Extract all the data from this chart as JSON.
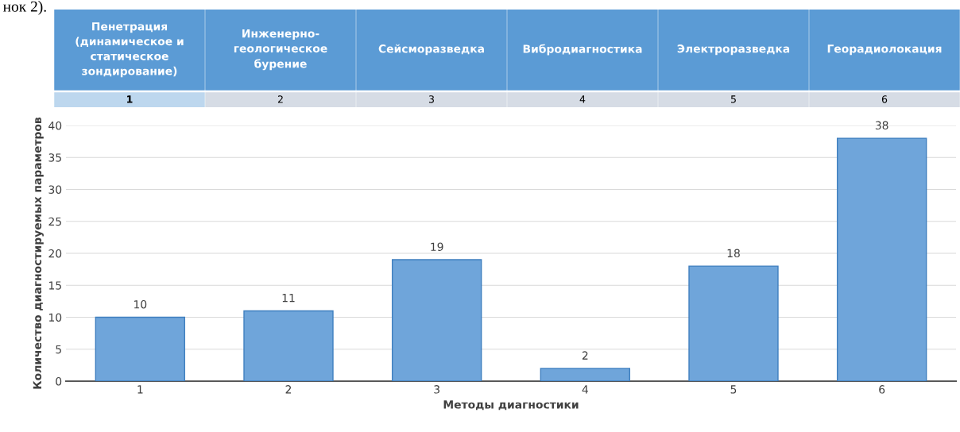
{
  "chart_data": {
    "type": "bar",
    "categories": [
      "1",
      "2",
      "3",
      "4",
      "5",
      "6"
    ],
    "values": [
      10,
      11,
      19,
      2,
      18,
      38
    ],
    "color": "#6fa5da",
    "ylim": [
      0,
      40
    ],
    "yticks": [
      0,
      5,
      10,
      15,
      20,
      25,
      30,
      35,
      40
    ],
    "ylabel": "Количество диагностируемых параметров",
    "xlabel": "Методы диагностики",
    "grid": "y",
    "data_labels": true,
    "legend": false,
    "annotations": [
      "нок 2).",
      "Пенетрация\n(динамическое и\nстатическое\nзондирование)",
      "Инженерно-\nгеологическое\nбурение",
      "Сейсморазведка",
      "Вибродиагностика",
      "Электроразведка",
      "Георадиолокация"
    ]
  }
}
